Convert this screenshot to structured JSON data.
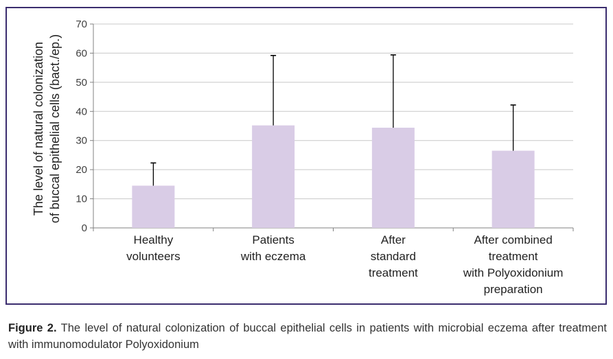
{
  "chart_data": {
    "type": "bar",
    "categories": [
      [
        "Healthy",
        "volunteers"
      ],
      [
        "Patients",
        "with eczema"
      ],
      [
        "After",
        "standard",
        "treatment"
      ],
      [
        "After combined",
        "treatment",
        "with Polyoxidonium",
        "preparation"
      ]
    ],
    "values": [
      14.5,
      35.2,
      34.4,
      26.5
    ],
    "error_upper": [
      22.3,
      59.2,
      59.4,
      42.2
    ],
    "ylabel": [
      "The level of natural colonization",
      "of buccal epithelial cells (bact./ep.)"
    ],
    "ylim": [
      0,
      70
    ],
    "yticks": [
      0,
      10,
      20,
      30,
      40,
      50,
      60,
      70
    ],
    "grid": true,
    "bar_color": "#d9cce6",
    "error_color": "#000000",
    "grid_color": "#c8c8c8"
  },
  "caption": {
    "label": "Figure 2.",
    "text": "The level of natural colonization of buccal epithelial cells in patients with microbial eczema after treatment with immunomodulator Polyoxidonium"
  }
}
